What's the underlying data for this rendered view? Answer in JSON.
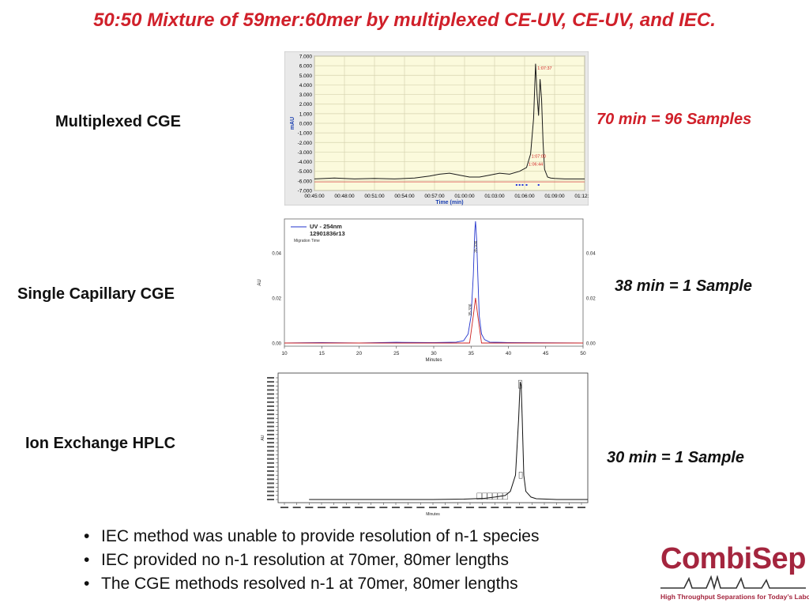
{
  "slide": {
    "title": "50:50 Mixture of 59mer:60mer by multiplexed CE-UV, CE-UV, and IEC.",
    "rows": [
      {
        "label": "Multiplexed CGE",
        "note": "70 min = 96 Samples"
      },
      {
        "label": "Single Capillary CGE",
        "note": "38 min = 1 Sample"
      },
      {
        "label": "Ion Exchange HPLC",
        "note": "30 min = 1 Sample"
      }
    ],
    "bullets": [
      "IEC method was unable to provide resolution of n-1 species",
      "IEC provided no n-1 resolution at 70mer, 80mer lengths",
      "The CGE methods resolved n-1 at 70mer, 80mer lengths"
    ],
    "logo": {
      "name": "CombiSep",
      "tagline": "High Throughput Separations for Today’s Laboratory",
      "color": "#a4253e"
    }
  },
  "chart_data": [
    {
      "type": "line",
      "ylabel": "mAU",
      "xlabel": "Time (min)",
      "ylim": [
        -7.0,
        7.0
      ],
      "yticks": [
        "7.000",
        "6.000",
        "5.000",
        "4.000",
        "3.000",
        "2.000",
        "1.000",
        "0.000",
        "-1.000",
        "-2.000",
        "-3.000",
        "-4.000",
        "-5.000",
        "-6.000",
        "-7.000"
      ],
      "xlim": [
        45,
        72
      ],
      "xticks": [
        "00:45:00",
        "00:48:00",
        "00:51:00",
        "00:54:00",
        "00:57:00",
        "01:00:00",
        "01:03:00",
        "01:06:00",
        "01:09:00",
        "01:12:00"
      ],
      "grid": true,
      "annotations": [
        {
          "text": "1:07:37",
          "x": 67.6,
          "y": 5.6
        },
        {
          "text": "1:07:00",
          "x": 67.0,
          "y": -3.6
        },
        {
          "text": "1:06:44",
          "x": 66.7,
          "y": -4.4
        }
      ],
      "series": [
        {
          "color": "#1a1a1a",
          "x": [
            45,
            47,
            49,
            51,
            53,
            55,
            56.5,
            57.5,
            58.5,
            59.5,
            60.5,
            61.5,
            62.5,
            63.5,
            64.5,
            65.5,
            66.2,
            66.6,
            66.9,
            67.1,
            67.25,
            67.4,
            67.55,
            67.7,
            67.85,
            68.0,
            68.3,
            68.6,
            69,
            70,
            72
          ],
          "y": [
            -5.8,
            -5.7,
            -5.8,
            -5.75,
            -5.8,
            -5.7,
            -5.5,
            -5.3,
            -5.2,
            -5.4,
            -5.6,
            -5.6,
            -5.4,
            -5.2,
            -5.3,
            -5.0,
            -4.6,
            -3.2,
            0.5,
            6.2,
            3.0,
            0.8,
            4.6,
            2.5,
            -2.0,
            -4.8,
            -5.6,
            -5.7,
            -5.75,
            -5.8,
            -5.8
          ]
        },
        {
          "color": "#e05050",
          "x": [
            45,
            72
          ],
          "y": [
            -6.1,
            -6.1
          ]
        }
      ]
    },
    {
      "type": "line",
      "legend": [
        "UV - 254nm",
        "12901836r13"
      ],
      "subtitle": "Migration Time",
      "ylabel": "AU",
      "xlabel": "Minutes",
      "xlim": [
        10,
        50
      ],
      "xticks": [
        10,
        15,
        20,
        25,
        30,
        35,
        40,
        45,
        50
      ],
      "ylim": [
        0,
        0.055
      ],
      "yticks": [
        "0.00",
        "0.02",
        "0.04"
      ],
      "peak_labels": [
        "35.936",
        "35.336"
      ],
      "series": [
        {
          "name": "UV - 254nm",
          "color": "#2233cc",
          "x": [
            10,
            15,
            20,
            25,
            30,
            33,
            34,
            34.6,
            35.0,
            35.3,
            35.5,
            35.6,
            35.75,
            35.9,
            36.1,
            36.4,
            36.8,
            37.5,
            40,
            45,
            50
          ],
          "y": [
            0.0,
            0.0002,
            0.0,
            0.0003,
            0.0002,
            0.0004,
            0.001,
            0.004,
            0.012,
            0.03,
            0.05,
            0.054,
            0.046,
            0.03,
            0.012,
            0.004,
            0.0015,
            0.0004,
            0.0002,
            0.0001,
            0.0
          ]
        },
        {
          "name": "",
          "color": "#cc2222",
          "x": [
            10,
            34.8,
            35.3,
            35.6,
            35.9,
            36.4,
            50
          ],
          "y": [
            0.0,
            0.0,
            0.012,
            0.02,
            0.012,
            0.0,
            0.0
          ]
        }
      ]
    },
    {
      "type": "line",
      "ylabel": "AU",
      "xlabel": "Minutes",
      "xlim": [
        0,
        30
      ],
      "ylim": [
        0,
        0.3
      ],
      "series": [
        {
          "color": "#111111",
          "x": [
            3,
            10,
            15,
            18,
            20,
            21,
            22,
            22.5,
            23,
            23.3,
            23.45,
            23.55,
            23.65,
            23.8,
            24.0,
            24.5,
            25,
            27,
            30
          ],
          "y": [
            0.0,
            0.0,
            0.0,
            0.001,
            0.003,
            0.006,
            0.01,
            0.02,
            0.06,
            0.2,
            0.29,
            0.28,
            0.2,
            0.06,
            0.02,
            0.006,
            0.002,
            0.0,
            0.0
          ]
        }
      ]
    }
  ]
}
